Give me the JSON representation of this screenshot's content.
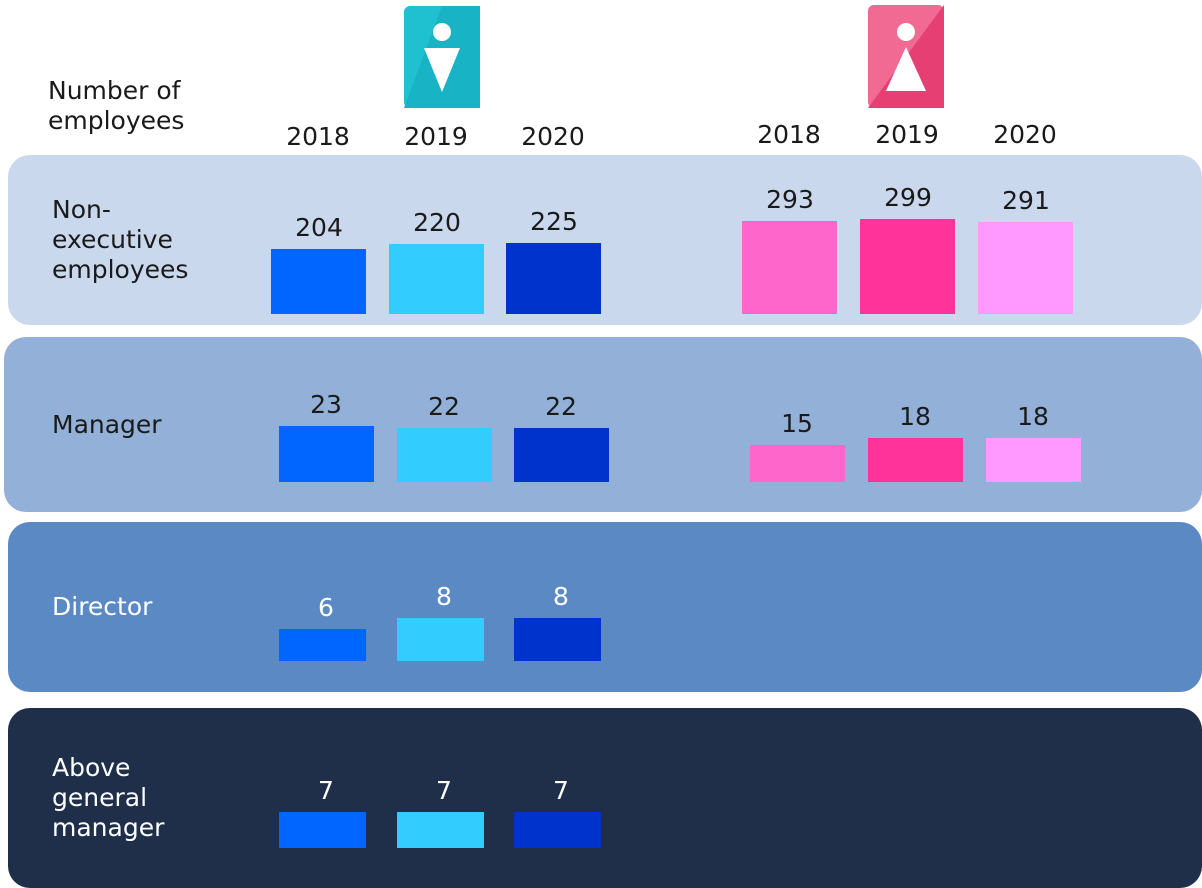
{
  "header": "Number of employees",
  "years": [
    "2018",
    "2019",
    "2020"
  ],
  "colors": {
    "male": [
      "#0066ff",
      "#33ccff",
      "#0033cc"
    ],
    "female": [
      "#ff66cc",
      "#ff3399",
      "#ff99ff"
    ]
  },
  "rows": [
    {
      "label": "Non-executive employees",
      "male": [
        204,
        220,
        225
      ],
      "female": [
        293,
        299,
        291
      ]
    },
    {
      "label": "Manager",
      "male": [
        23,
        22,
        22
      ],
      "female": [
        15,
        18,
        18
      ]
    },
    {
      "label": "Director",
      "male": [
        6,
        8,
        8
      ]
    },
    {
      "label": "Above general manager",
      "male": [
        7,
        7,
        7
      ]
    }
  ]
}
